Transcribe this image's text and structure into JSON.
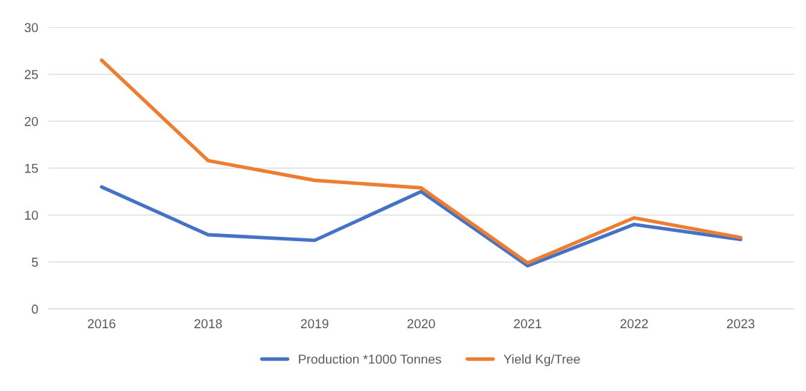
{
  "chart_data": {
    "type": "line",
    "categories": [
      "2016",
      "2018",
      "2019",
      "2020",
      "2021",
      "2022",
      "2023"
    ],
    "series": [
      {
        "name": "Production *1000 Tonnes",
        "color": "#4472c4",
        "values": [
          13,
          7.9,
          7.3,
          12.5,
          4.6,
          9.0,
          7.4
        ]
      },
      {
        "name": "Yield Kg/Tree",
        "color": "#ed7d31",
        "values": [
          26.5,
          15.8,
          13.7,
          12.9,
          4.9,
          9.7,
          7.6
        ]
      }
    ],
    "ylim": [
      0,
      30
    ],
    "yticks": [
      0,
      5,
      10,
      15,
      20,
      25,
      30
    ],
    "grid": "y",
    "legend": "bottom",
    "line_style": "solid",
    "marker": "none"
  }
}
